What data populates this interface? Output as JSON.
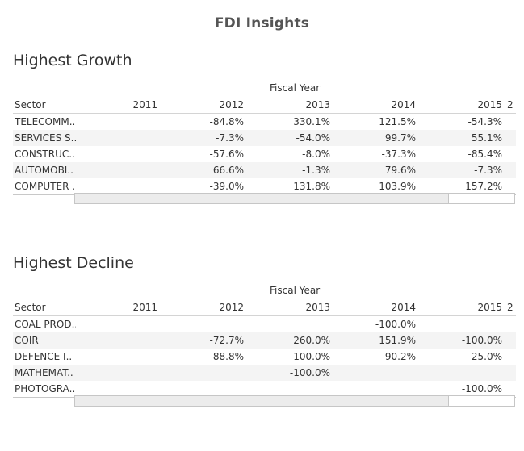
{
  "dashboard": {
    "title": "FDI Insights"
  },
  "growth": {
    "title": "Highest Growth",
    "column_group": "Fiscal Year",
    "headers": [
      "Sector",
      "2011",
      "2012",
      "2013",
      "2014",
      "2015",
      "2"
    ],
    "rows": [
      {
        "sector": "TELECOMM..",
        "values": [
          "",
          "-84.8%",
          "330.1%",
          "121.5%",
          "-54.3%",
          ""
        ]
      },
      {
        "sector": "SERVICES S..",
        "values": [
          "",
          "-7.3%",
          "-54.0%",
          "99.7%",
          "55.1%",
          ""
        ]
      },
      {
        "sector": "CONSTRUC..",
        "values": [
          "",
          "-57.6%",
          "-8.0%",
          "-37.3%",
          "-85.4%",
          ""
        ]
      },
      {
        "sector": "AUTOMOBI..",
        "values": [
          "",
          "66.6%",
          "-1.3%",
          "79.6%",
          "-7.3%",
          ""
        ]
      },
      {
        "sector": "COMPUTER ..",
        "values": [
          "",
          "-39.0%",
          "131.8%",
          "103.9%",
          "157.2%",
          ""
        ]
      }
    ]
  },
  "decline": {
    "title": "Highest Decline",
    "column_group": "Fiscal Year",
    "headers": [
      "Sector",
      "2011",
      "2012",
      "2013",
      "2014",
      "2015",
      "2"
    ],
    "rows": [
      {
        "sector": "COAL PROD..",
        "values": [
          "",
          "",
          "",
          "-100.0%",
          "",
          ""
        ]
      },
      {
        "sector": "COIR",
        "values": [
          "",
          "-72.7%",
          "260.0%",
          "151.9%",
          "-100.0%",
          ""
        ]
      },
      {
        "sector": "DEFENCE I..",
        "values": [
          "",
          "-88.8%",
          "100.0%",
          "-90.2%",
          "25.0%",
          ""
        ]
      },
      {
        "sector": "MATHEMAT..",
        "values": [
          "",
          "",
          "-100.0%",
          "",
          "",
          ""
        ]
      },
      {
        "sector": "PHOTOGRA..",
        "values": [
          "",
          "",
          "",
          "",
          "-100.0%",
          ""
        ]
      }
    ]
  }
}
